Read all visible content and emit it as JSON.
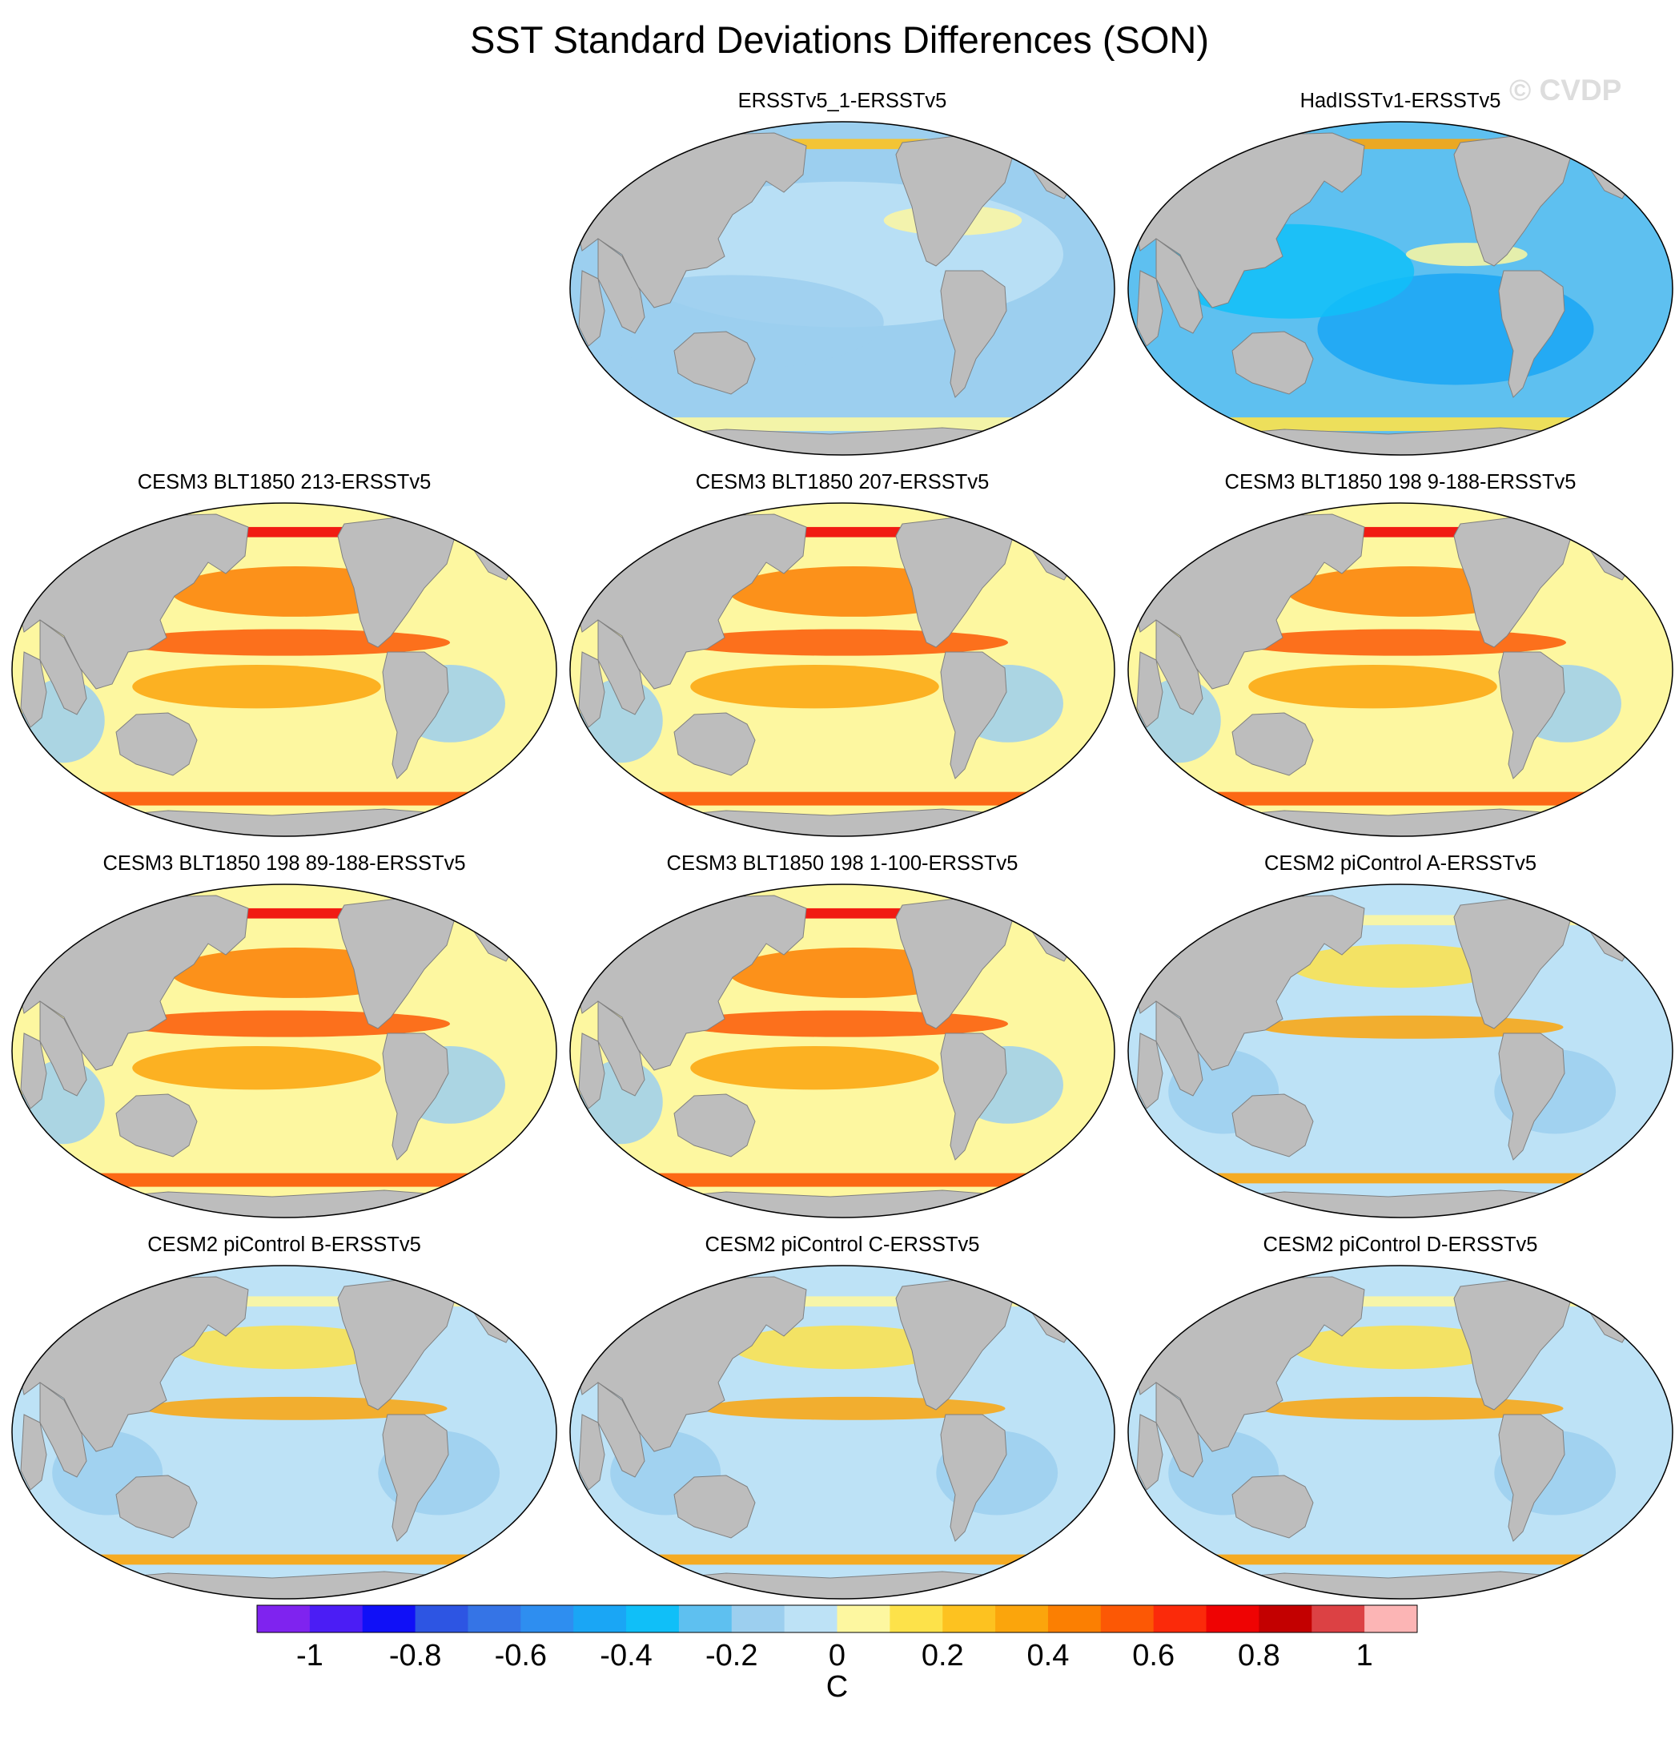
{
  "chart_data": {
    "type": "heatmap",
    "title": "SST Standard Deviations Differences (SON)",
    "watermark": "© CVDP",
    "projection": "Robinson (Pacific-centered)",
    "panels": [
      {
        "title": "ERSSTv5_1-ERSSTv5",
        "pattern": "weak"
      },
      {
        "title": "HadISSTv1-ERSSTv5",
        "pattern": "negative"
      },
      {
        "title": "CESM3 BLT1850 213-ERSSTv5",
        "pattern": "strong"
      },
      {
        "title": "CESM3 BLT1850 207-ERSSTv5",
        "pattern": "strong"
      },
      {
        "title": "CESM3 BLT1850 198 9-188-ERSSTv5",
        "pattern": "strong"
      },
      {
        "title": "CESM3 BLT1850 198 89-188-ERSSTv5",
        "pattern": "strong"
      },
      {
        "title": "CESM3 BLT1850 198 1-100-ERSSTv5",
        "pattern": "strong"
      },
      {
        "title": "CESM2 piControl A-ERSSTv5",
        "pattern": "moderate"
      },
      {
        "title": "CESM2 piControl B-ERSSTv5",
        "pattern": "moderate"
      },
      {
        "title": "CESM2 piControl C-ERSSTv5",
        "pattern": "moderate"
      },
      {
        "title": "CESM2 piControl D-ERSSTv5",
        "pattern": "moderate"
      }
    ],
    "colorbar": {
      "label": "C",
      "vmin": -1.1,
      "vmax": 1.1,
      "levels": [
        -1.0,
        -0.9,
        -0.8,
        -0.7,
        -0.6,
        -0.5,
        -0.4,
        -0.3,
        -0.2,
        -0.1,
        0.0,
        0.1,
        0.2,
        0.3,
        0.4,
        0.5,
        0.6,
        0.7,
        0.8,
        0.9,
        1.0
      ],
      "colors": [
        "#7f23ef",
        "#4b1df5",
        "#1010f7",
        "#2d55e3",
        "#3574e6",
        "#2e8ef0",
        "#1aa6f5",
        "#10bff8",
        "#5ec0f0",
        "#9ccfef",
        "#bde2f6",
        "#fdf7a0",
        "#fde24a",
        "#fdc220",
        "#fba50c",
        "#fb7f02",
        "#fc5805",
        "#fb2a0a",
        "#ef0303",
        "#c30000",
        "#dc4144",
        "#fcb5b5"
      ],
      "tick_labels": [
        "-1",
        "-0.8",
        "-0.6",
        "-0.4",
        "-0.2",
        "0",
        "0.2",
        "0.4",
        "0.6",
        "0.8",
        "1"
      ]
    }
  }
}
